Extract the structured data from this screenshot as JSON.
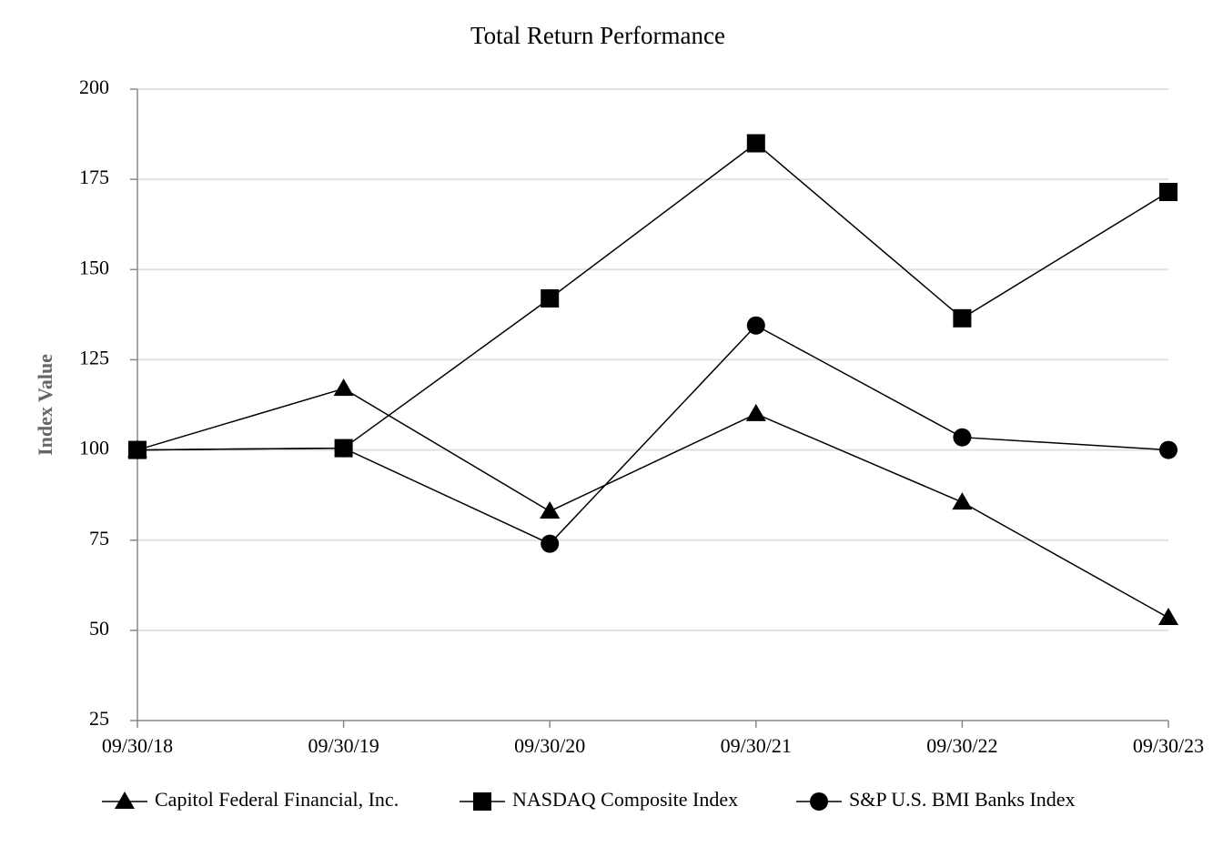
{
  "chart_data": {
    "type": "line",
    "title": "Total Return Performance",
    "y_label": "Index Value",
    "categories": [
      "09/30/18",
      "09/30/19",
      "09/30/20",
      "09/30/21",
      "09/30/22",
      "09/30/23"
    ],
    "series": [
      {
        "name": "Capitol Federal Financial, Inc.",
        "color": "#000000",
        "marker": "triangle",
        "values": [
          100,
          117,
          83,
          110,
          85.5,
          53.5
        ]
      },
      {
        "name": "NASDAQ Composite Index",
        "color": "#000000",
        "marker": "square",
        "values": [
          100,
          100.5,
          142,
          185,
          136.5,
          171.5
        ]
      },
      {
        "name": "S&P U.S. BMI Banks Index",
        "color": "#000000",
        "marker": "circle",
        "values": [
          100,
          100.5,
          74,
          134.5,
          103.5,
          100
        ]
      }
    ],
    "ylim": [
      25,
      200
    ],
    "yticks": [
      25,
      50,
      75,
      100,
      125,
      150,
      175,
      200
    ],
    "grid": true,
    "legend": "bottom"
  }
}
